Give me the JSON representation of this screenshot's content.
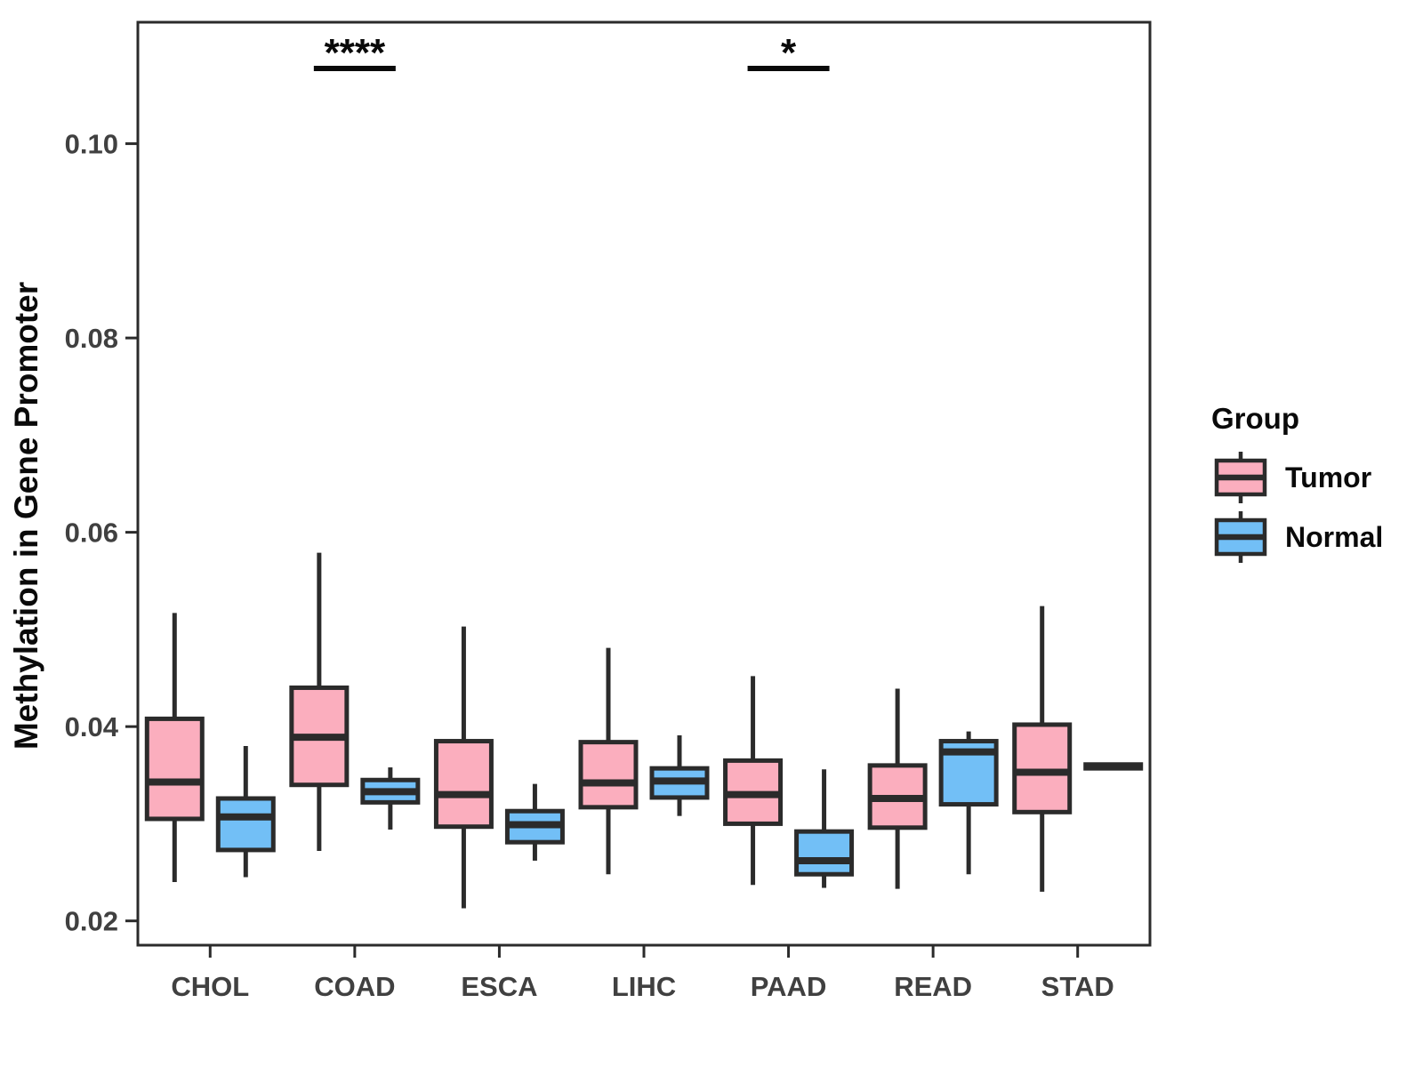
{
  "chart_data": {
    "type": "boxplot",
    "title": "",
    "xlabel": "",
    "ylabel": "Methylation in Gene Promoter",
    "categories": [
      "CHOL",
      "COAD",
      "ESCA",
      "LIHC",
      "PAAD",
      "READ",
      "STAD"
    ],
    "y_ticks": [
      0.02,
      0.04,
      0.06,
      0.08,
      0.1
    ],
    "y_tick_labels": [
      "0.02",
      "0.04",
      "0.06",
      "0.08",
      "0.10"
    ],
    "ylim": [
      0.0175,
      0.1125
    ],
    "grid": false,
    "legend": {
      "title": "Group",
      "position": "right",
      "entries": [
        {
          "label": "Tumor",
          "color": "#FBAEBE"
        },
        {
          "label": "Normal",
          "color": "#72BFF6"
        }
      ]
    },
    "series": [
      {
        "name": "Tumor",
        "color": "#FBAEBE",
        "boxes": [
          {
            "category": "CHOL",
            "min": 0.024,
            "q1": 0.0305,
            "median": 0.0343,
            "q3": 0.0408,
            "max": 0.0517
          },
          {
            "category": "COAD",
            "min": 0.0272,
            "q1": 0.034,
            "median": 0.0389,
            "q3": 0.044,
            "max": 0.0579
          },
          {
            "category": "ESCA",
            "min": 0.0213,
            "q1": 0.0297,
            "median": 0.033,
            "q3": 0.0385,
            "max": 0.0503
          },
          {
            "category": "LIHC",
            "min": 0.0248,
            "q1": 0.0317,
            "median": 0.0342,
            "q3": 0.0384,
            "max": 0.0481
          },
          {
            "category": "PAAD",
            "min": 0.0237,
            "q1": 0.03,
            "median": 0.033,
            "q3": 0.0365,
            "max": 0.0452
          },
          {
            "category": "READ",
            "min": 0.0233,
            "q1": 0.0296,
            "median": 0.0326,
            "q3": 0.036,
            "max": 0.0439
          },
          {
            "category": "STAD",
            "min": 0.023,
            "q1": 0.0312,
            "median": 0.0353,
            "q3": 0.0402,
            "max": 0.0524
          }
        ]
      },
      {
        "name": "Normal",
        "color": "#72BFF6",
        "boxes": [
          {
            "category": "CHOL",
            "min": 0.0245,
            "q1": 0.0273,
            "median": 0.0307,
            "q3": 0.0326,
            "max": 0.038
          },
          {
            "category": "COAD",
            "min": 0.0294,
            "q1": 0.0322,
            "median": 0.0333,
            "q3": 0.0345,
            "max": 0.0358
          },
          {
            "category": "ESCA",
            "min": 0.0262,
            "q1": 0.0281,
            "median": 0.0299,
            "q3": 0.0313,
            "max": 0.0341
          },
          {
            "category": "LIHC",
            "min": 0.0308,
            "q1": 0.0327,
            "median": 0.0344,
            "q3": 0.0357,
            "max": 0.0391
          },
          {
            "category": "PAAD",
            "min": 0.0234,
            "q1": 0.0248,
            "median": 0.0262,
            "q3": 0.0292,
            "max": 0.0356
          },
          {
            "category": "READ",
            "min": 0.0248,
            "q1": 0.032,
            "median": 0.0374,
            "q3": 0.0385,
            "max": 0.0395
          },
          {
            "category": "STAD",
            "min": 0.0355,
            "q1": 0.0357,
            "median": 0.0359,
            "q3": 0.0361,
            "max": 0.0363
          }
        ]
      }
    ],
    "annotations": [
      {
        "category": "COAD",
        "label": "****"
      },
      {
        "category": "PAAD",
        "label": "*"
      }
    ],
    "colors": {
      "tumor_fill": "#FBAEBE",
      "normal_fill": "#72BFF6",
      "box_line": "#2B2B2B",
      "tick_text": "#404040",
      "title_text": "#0A0A0A",
      "background": "#FFFFFF"
    }
  }
}
